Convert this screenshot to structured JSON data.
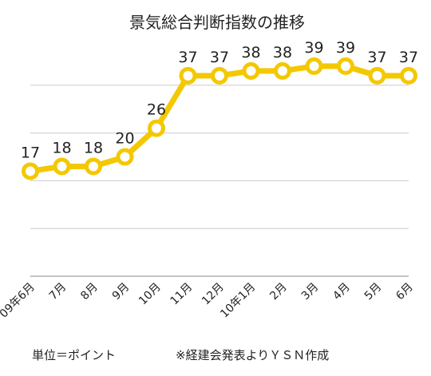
{
  "chart_data": {
    "type": "line",
    "title": "景気総合判断指数の推移",
    "categories": [
      "09年6月",
      "7月",
      "8月",
      "9月",
      "10月",
      "11月",
      "12月",
      "10年1月",
      "2月",
      "3月",
      "4月",
      "5月",
      "6月"
    ],
    "series": [
      {
        "values": [
          17,
          18,
          18,
          20,
          26,
          37,
          37,
          38,
          38,
          39,
          39,
          37,
          37
        ]
      }
    ],
    "ylim": [
      -5,
      45
    ],
    "grid": true,
    "line_color": "#f4c800",
    "marker_fill": "#ffffff",
    "grid_color": "#cccccc"
  },
  "notes": {
    "unit": "単位＝ポイント",
    "source": "※経建会発表よりＹＳＮ作成"
  }
}
